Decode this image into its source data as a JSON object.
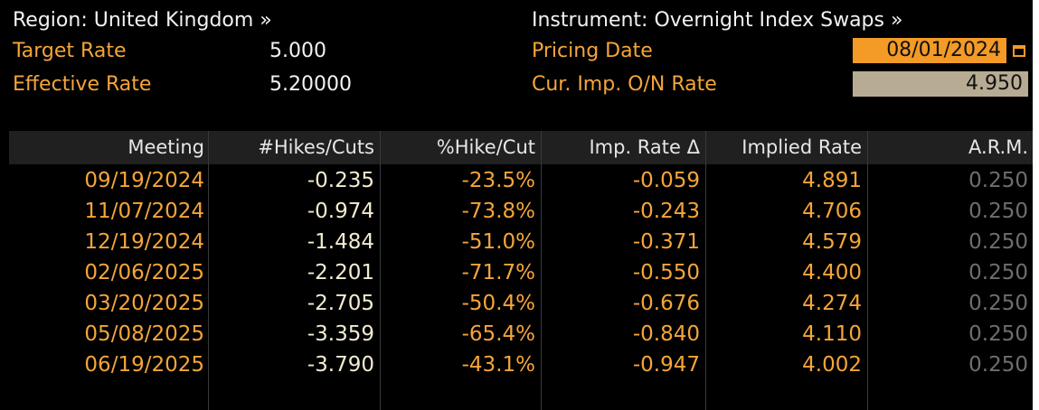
{
  "header": {
    "region_label": "Region: United Kingdom »",
    "instrument_label": "Instrument: Overnight Index Swaps »",
    "target_rate_label": "Target Rate",
    "target_rate_value": "5.000",
    "effective_rate_label": "Effective Rate",
    "effective_rate_value": "5.20000",
    "pricing_date_label": "Pricing Date",
    "pricing_date_value": "08/01/2024",
    "cur_imp_label": "Cur. Imp. O/N Rate",
    "cur_imp_value": "4.950"
  },
  "icons": {
    "calendar": "calendar-icon"
  },
  "colors": {
    "background": "#000000",
    "accent_orange": "#f5a53a",
    "field_orange": "#f39a27",
    "field_tan": "#b7ab93",
    "header_bar": "#202020",
    "muted": "#6e6e6e"
  },
  "table": {
    "columns": [
      "Meeting",
      "#Hikes/Cuts",
      "%Hike/Cut",
      "Imp. Rate Δ",
      "Implied Rate",
      "A.R.M."
    ],
    "rows": [
      {
        "meeting": "09/19/2024",
        "hikes": "-0.235",
        "pct": "-23.5%",
        "imp_delta": "-0.059",
        "implied": "4.891",
        "arm": "0.250"
      },
      {
        "meeting": "11/07/2024",
        "hikes": "-0.974",
        "pct": "-73.8%",
        "imp_delta": "-0.243",
        "implied": "4.706",
        "arm": "0.250"
      },
      {
        "meeting": "12/19/2024",
        "hikes": "-1.484",
        "pct": "-51.0%",
        "imp_delta": "-0.371",
        "implied": "4.579",
        "arm": "0.250"
      },
      {
        "meeting": "02/06/2025",
        "hikes": "-2.201",
        "pct": "-71.7%",
        "imp_delta": "-0.550",
        "implied": "4.400",
        "arm": "0.250"
      },
      {
        "meeting": "03/20/2025",
        "hikes": "-2.705",
        "pct": "-50.4%",
        "imp_delta": "-0.676",
        "implied": "4.274",
        "arm": "0.250"
      },
      {
        "meeting": "05/08/2025",
        "hikes": "-3.359",
        "pct": "-65.4%",
        "imp_delta": "-0.840",
        "implied": "4.110",
        "arm": "0.250"
      },
      {
        "meeting": "06/19/2025",
        "hikes": "-3.790",
        "pct": "-43.1%",
        "imp_delta": "-0.947",
        "implied": "4.002",
        "arm": "0.250"
      }
    ]
  }
}
